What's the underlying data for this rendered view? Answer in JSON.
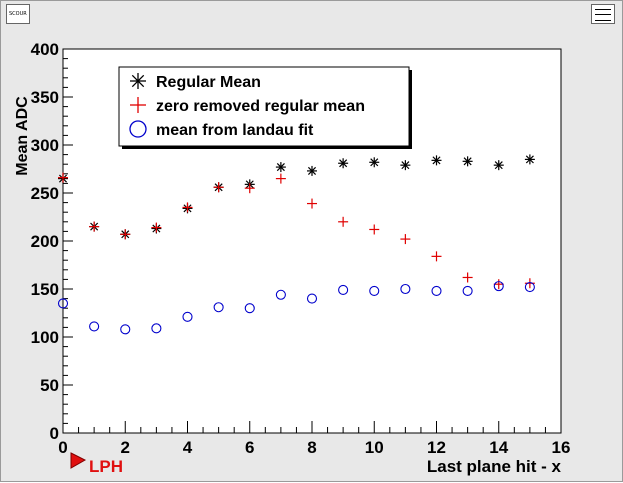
{
  "window": {
    "left_icon": "scale-icon",
    "left_icon_text": "SCOUR",
    "right_icon": "list-icon",
    "background": "#e8e8e8"
  },
  "marker": {
    "label": "LPH",
    "color": "#e01010",
    "icon": "red-triangle-marker-icon"
  },
  "chart_data": {
    "type": "scatter",
    "title": "",
    "xlabel": "Last plane hit - x",
    "ylabel": "Mean ADC",
    "xlim": [
      0,
      16
    ],
    "ylim": [
      0,
      400
    ],
    "xticks": [
      0,
      2,
      4,
      6,
      8,
      10,
      12,
      14,
      16
    ],
    "yticks": [
      0,
      50,
      100,
      150,
      200,
      250,
      300,
      350,
      400
    ],
    "grid": false,
    "legend_position": "top-left",
    "series": [
      {
        "name": "Regular Mean",
        "marker": "asterisk",
        "color": "#000000",
        "x": [
          0,
          1,
          2,
          3,
          4,
          5,
          6,
          7,
          8,
          9,
          10,
          11,
          12,
          13,
          14,
          15
        ],
        "y": [
          265,
          215,
          207,
          213,
          234,
          256,
          259,
          277,
          273,
          281,
          282,
          279,
          284,
          283,
          279,
          285
        ]
      },
      {
        "name": "zero removed regular mean",
        "marker": "plus",
        "color": "#e00000",
        "x": [
          0,
          1,
          2,
          3,
          4,
          5,
          6,
          7,
          8,
          9,
          10,
          11,
          12,
          13,
          14,
          15
        ],
        "y": [
          266,
          215,
          207,
          214,
          235,
          256,
          255,
          265,
          239,
          220,
          212,
          202,
          184,
          162,
          155,
          156
        ]
      },
      {
        "name": "mean from landau fit",
        "marker": "open-circle",
        "color": "#0000cc",
        "x": [
          0,
          1,
          2,
          3,
          4,
          5,
          6,
          7,
          8,
          9,
          10,
          11,
          12,
          13,
          14,
          15
        ],
        "y": [
          135,
          111,
          108,
          109,
          121,
          131,
          130,
          144,
          140,
          149,
          148,
          150,
          148,
          148,
          153,
          152
        ]
      }
    ]
  }
}
